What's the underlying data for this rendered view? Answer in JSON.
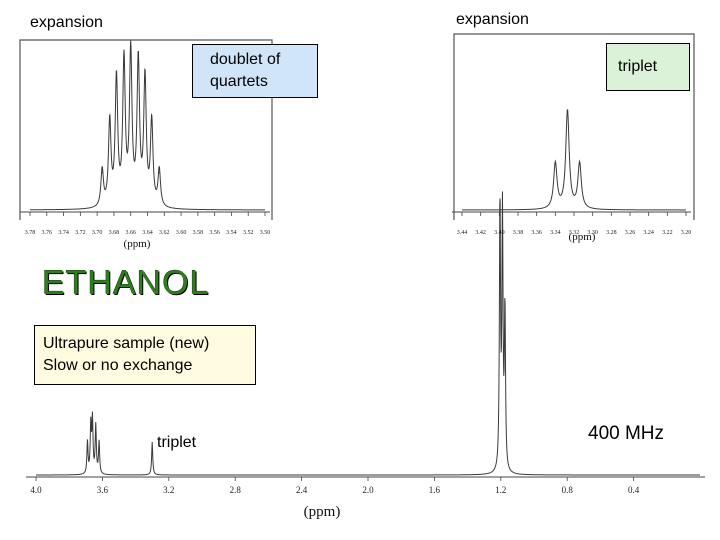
{
  "labels": {
    "expansion_left": "expansion",
    "expansion_right": "expansion",
    "doublet_line1": "doublet of",
    "doublet_line2": "quartets",
    "triplet_top": "triplet",
    "compound": "ETHANOL",
    "sample_line1": "Ultrapure sample (new)",
    "sample_line2": "Slow or no exchange",
    "triplet_bottom": "triplet",
    "frequency": "400 MHz"
  },
  "colors": {
    "compound_text": "#2f7d1f",
    "doublet_box": "#d0e6f8",
    "triplet_box": "#dcf2d8",
    "sample_box": "#fffbe0",
    "spectrum_line": "#3a3a3a"
  },
  "chart_data": [
    {
      "type": "line",
      "title": "",
      "xlabel": "(ppm)",
      "ylabel": "",
      "xlim": [
        4.0,
        0.0
      ],
      "x_reversed": true,
      "x_ticks": [
        "4.0",
        "3.6",
        "3.2",
        "2.8",
        "2.4",
        "2.0",
        "1.6",
        "1.2",
        "0.8",
        "0.4"
      ],
      "tick_values": [
        4.0,
        3.6,
        3.2,
        2.8,
        2.4,
        2.0,
        1.6,
        1.2,
        0.8,
        0.4
      ],
      "peaks": [
        {
          "ppm": 3.69,
          "height": 0.12
        },
        {
          "ppm": 3.67,
          "height": 0.18
        },
        {
          "ppm": 3.66,
          "height": 0.2
        },
        {
          "ppm": 3.64,
          "height": 0.18
        },
        {
          "ppm": 3.62,
          "height": 0.12
        },
        {
          "ppm": 3.3,
          "height": 0.12
        },
        {
          "ppm": 1.205,
          "height": 1.0
        },
        {
          "ppm": 1.19,
          "height": 0.95
        },
        {
          "ppm": 1.175,
          "height": 0.6
        }
      ]
    },
    {
      "type": "line",
      "title": "",
      "xlabel": "(ppm)",
      "ylabel": "",
      "xlim": [
        3.78,
        3.5
      ],
      "x_reversed": true,
      "x_ticks": [
        "3.78",
        "3.76",
        "3.74",
        "3.72",
        "3.70",
        "3.68",
        "3.66",
        "3.64",
        "3.62",
        "3.60",
        "3.58",
        "3.56",
        "3.54",
        "3.52",
        "3.50"
      ],
      "tick_values": [
        3.78,
        3.76,
        3.74,
        3.72,
        3.7,
        3.68,
        3.66,
        3.64,
        3.62,
        3.6,
        3.58,
        3.56,
        3.54,
        3.52,
        3.5
      ],
      "peaks": [
        {
          "ppm": 3.694,
          "height": 0.22
        },
        {
          "ppm": 3.685,
          "height": 0.5
        },
        {
          "ppm": 3.677,
          "height": 0.75
        },
        {
          "ppm": 3.668,
          "height": 0.85
        },
        {
          "ppm": 3.66,
          "height": 0.9
        },
        {
          "ppm": 3.651,
          "height": 0.85
        },
        {
          "ppm": 3.643,
          "height": 0.75
        },
        {
          "ppm": 3.635,
          "height": 0.5
        },
        {
          "ppm": 3.626,
          "height": 0.22
        }
      ]
    },
    {
      "type": "line",
      "title": "",
      "xlabel": "(ppm)",
      "ylabel": "",
      "xlim": [
        3.44,
        3.2
      ],
      "x_reversed": true,
      "x_ticks": [
        "3.44",
        "3.42",
        "3.40",
        "3.38",
        "3.36",
        "3.34",
        "3.32",
        "3.30",
        "3.28",
        "3.26",
        "3.24",
        "3.22",
        "3.20"
      ],
      "tick_values": [
        3.44,
        3.42,
        3.4,
        3.38,
        3.36,
        3.34,
        3.32,
        3.3,
        3.28,
        3.26,
        3.24,
        3.22,
        3.2
      ],
      "peaks": [
        {
          "ppm": 3.34,
          "height": 0.38
        },
        {
          "ppm": 3.327,
          "height": 0.82
        },
        {
          "ppm": 3.314,
          "height": 0.38
        }
      ]
    }
  ]
}
